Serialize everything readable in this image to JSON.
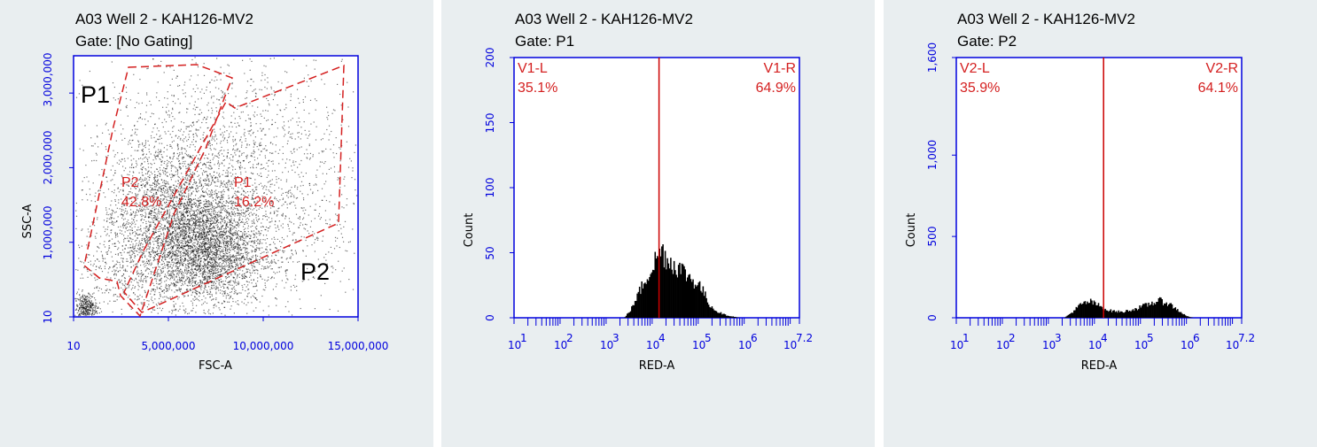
{
  "chart_data": [
    {
      "type": "scatter",
      "title": "A03 Well 2 - KAH126-MV2",
      "subtitle": "Gate: [No Gating]",
      "xlabel": "FSC-A",
      "ylabel": "SSC-A",
      "xlim": [
        10,
        15000000
      ],
      "ylim": [
        10,
        3500000
      ],
      "x_ticks": [
        "10",
        "5,000,000",
        "10,000,000",
        "15,000,000"
      ],
      "y_ticks": [
        "10",
        "1,000,000",
        "2,000,000",
        "3,000,000"
      ],
      "gates": [
        {
          "name": "P1",
          "percent": "16.2%",
          "region_label": "P1"
        },
        {
          "name": "P2",
          "percent": "42.8%",
          "region_label": "P2"
        }
      ],
      "density_clusters": [
        {
          "x": 6800000,
          "y": 900000,
          "sx": 1600000,
          "sy": 380000,
          "n": 3200
        },
        {
          "x": 5000000,
          "y": 1500000,
          "sx": 1800000,
          "sy": 500000,
          "n": 1700
        },
        {
          "x": 8000000,
          "y": 2100000,
          "sx": 3200000,
          "sy": 800000,
          "n": 1400
        },
        {
          "x": 9500000,
          "y": 1300000,
          "sx": 3200000,
          "sy": 700000,
          "n": 800
        },
        {
          "x": 600000,
          "y": 120000,
          "sx": 300000,
          "sy": 100000,
          "n": 380
        },
        {
          "x": 2500000,
          "y": 700000,
          "sx": 1200000,
          "sy": 350000,
          "n": 400
        }
      ]
    },
    {
      "type": "bar",
      "title": "A03 Well 2 - KAH126-MV2",
      "subtitle": "Gate: P1",
      "xlabel": "RED-A",
      "ylabel": "Count",
      "x_scale": "log",
      "xlim": [
        1,
        7.2
      ],
      "ylim": [
        0,
        200
      ],
      "y_ticks": [
        "0",
        "50",
        "100",
        "150",
        "200"
      ],
      "x_tick_labels": [
        "1",
        "2",
        "3",
        "4",
        "5",
        "6",
        "7.2"
      ],
      "divider_log": 4.15,
      "left_region": {
        "name": "V1-L",
        "percent": "35.1%"
      },
      "right_region": {
        "name": "V1-R",
        "percent": "64.9%"
      },
      "profile": [
        [
          3.4,
          0
        ],
        [
          3.55,
          7
        ],
        [
          3.75,
          22
        ],
        [
          3.95,
          36
        ],
        [
          4.1,
          46
        ],
        [
          4.2,
          52
        ],
        [
          4.35,
          44
        ],
        [
          4.6,
          38
        ],
        [
          4.85,
          30
        ],
        [
          5.05,
          24
        ],
        [
          5.25,
          10
        ],
        [
          5.4,
          5
        ],
        [
          5.6,
          2
        ],
        [
          5.9,
          0
        ]
      ]
    },
    {
      "type": "bar",
      "title": "A03 Well 2 - KAH126-MV2",
      "subtitle": "Gate: P2",
      "xlabel": "RED-A",
      "ylabel": "Count",
      "x_scale": "log",
      "xlim": [
        1,
        7.2
      ],
      "ylim": [
        0,
        1600
      ],
      "y_ticks": [
        "0",
        "500",
        "1,000",
        "1,600"
      ],
      "x_tick_labels": [
        "1",
        "2",
        "3",
        "4",
        "5",
        "6",
        "7.2"
      ],
      "divider_log": 4.2,
      "left_region": {
        "name": "V2-L",
        "percent": "35.9%"
      },
      "right_region": {
        "name": "V2-R",
        "percent": "64.1%"
      },
      "profile": [
        [
          3.35,
          0
        ],
        [
          3.5,
          30
        ],
        [
          3.7,
          80
        ],
        [
          3.9,
          100
        ],
        [
          4.1,
          75
        ],
        [
          4.3,
          45
        ],
        [
          4.6,
          35
        ],
        [
          4.9,
          55
        ],
        [
          5.2,
          85
        ],
        [
          5.4,
          105
        ],
        [
          5.6,
          90
        ],
        [
          5.8,
          50
        ],
        [
          6.0,
          10
        ],
        [
          6.15,
          0
        ]
      ]
    }
  ],
  "colors": {
    "axis": "#0000dd",
    "gate": "#d42020",
    "divider": "#cc0000",
    "background": "#e9eef0",
    "plot_bg": "#ffffff",
    "events": "#000000"
  }
}
